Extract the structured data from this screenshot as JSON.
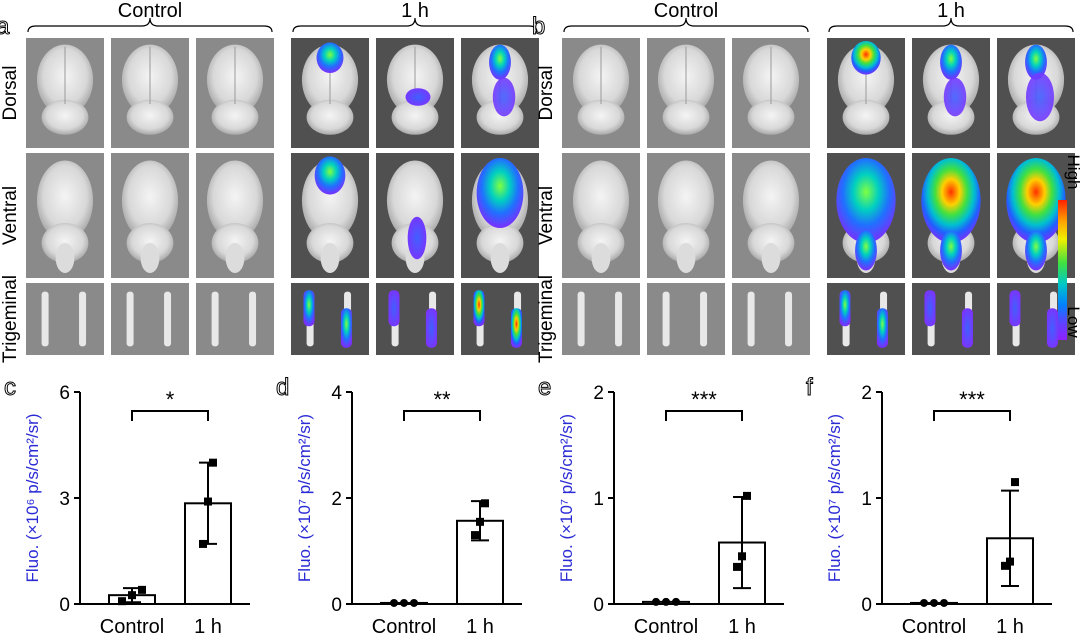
{
  "figure": {
    "panel_a": {
      "letter": "a",
      "group_labels": [
        "Control",
        "1 h"
      ],
      "row_labels": [
        "Dorsal",
        "Ventral",
        "Trigeminal"
      ]
    },
    "panel_b": {
      "letter": "b",
      "group_labels": [
        "Control",
        "1 h"
      ],
      "row_labels": [
        "Dorsal",
        "Ventral",
        "Trigeminal"
      ]
    },
    "colorbar": {
      "high_label": "High",
      "low_label": "Low",
      "colors": [
        "#ff2000",
        "#ffa000",
        "#f0f000",
        "#40e040",
        "#00c8c8",
        "#0080ff",
        "#6040ff",
        "#9020ff"
      ]
    },
    "bar_colors": {
      "axis": "#000000",
      "ylabel": "#2b2bd6"
    }
  },
  "chart_data": [
    {
      "type": "bar",
      "panel": "c",
      "categories": [
        "Control",
        "1 h"
      ],
      "values": [
        0.25,
        2.85
      ],
      "error": [
        0.2,
        1.15
      ],
      "points": [
        [
          0.08,
          0.25,
          0.4
        ],
        [
          1.7,
          2.9,
          4.0
        ]
      ],
      "ylim": [
        0,
        6
      ],
      "yticks": [
        "0",
        "3",
        "6"
      ],
      "ylabel": "Fluo. (×10⁶ p/s/cm²/sr)",
      "significance": "*"
    },
    {
      "type": "bar",
      "panel": "d",
      "categories": [
        "Control",
        "1 h"
      ],
      "values": [
        0.02,
        1.57
      ],
      "error": [
        0.01,
        0.37
      ],
      "points": [
        [
          0.02,
          0.02,
          0.02
        ],
        [
          1.3,
          1.55,
          1.9
        ]
      ],
      "ylim": [
        0,
        4
      ],
      "yticks": [
        "0",
        "2",
        "4"
      ],
      "ylabel": "Fluo. (×10⁷ p/s/cm²/sr)",
      "significance": "**"
    },
    {
      "type": "bar",
      "panel": "e",
      "categories": [
        "Control",
        "1 h"
      ],
      "values": [
        0.02,
        0.58
      ],
      "error": [
        0.01,
        0.43
      ],
      "points": [
        [
          0.02,
          0.02,
          0.02
        ],
        [
          0.35,
          0.45,
          1.02
        ]
      ],
      "ylim": [
        0,
        2
      ],
      "yticks": [
        "0",
        "1",
        "2"
      ],
      "ylabel": "Fluo. (×10⁷ p/s/cm²/sr)",
      "significance": "***"
    },
    {
      "type": "bar",
      "panel": "f",
      "categories": [
        "Control",
        "1 h"
      ],
      "values": [
        0.01,
        0.62
      ],
      "error": [
        0.005,
        0.45
      ],
      "points": [
        [
          0.01,
          0.01,
          0.01
        ],
        [
          0.36,
          0.4,
          1.15
        ]
      ],
      "ylim": [
        0,
        2
      ],
      "yticks": [
        "0",
        "1",
        "2"
      ],
      "ylabel": "Fluo. (×10⁷ p/s/cm²/sr)",
      "significance": "***"
    }
  ]
}
